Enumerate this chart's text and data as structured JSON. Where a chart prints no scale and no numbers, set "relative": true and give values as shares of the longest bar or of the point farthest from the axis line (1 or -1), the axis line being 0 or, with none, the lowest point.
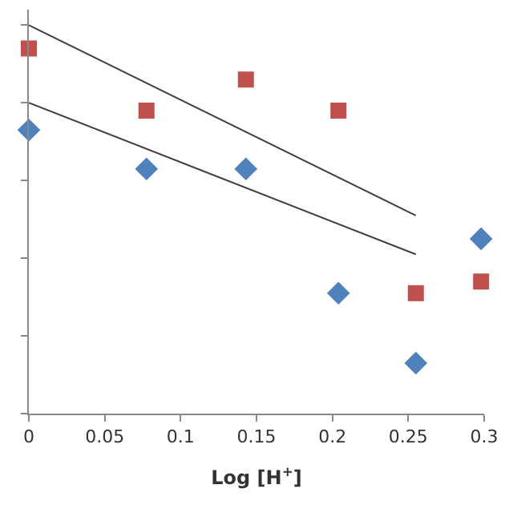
{
  "chart_data": {
    "type": "scatter",
    "xlabel": "Log [H$^{+}$]",
    "relative": true,
    "xlim": [
      0,
      0.3
    ],
    "xticks": [
      0,
      0.05,
      0.1,
      0.15,
      0.2,
      0.25,
      0.3
    ],
    "tick_labels": "x",
    "series": [
      {
        "marker": "square",
        "color": "#c0504d",
        "x": [
          0,
          0.0775,
          0.143,
          0.204,
          0.255,
          0.298
        ],
        "values": [
          0.94,
          0.78,
          0.86,
          0.78,
          0.31,
          0.34
        ]
      },
      {
        "marker": "diamond",
        "color": "#4f81bd",
        "x": [
          0,
          0.0775,
          0.143,
          0.204,
          0.255,
          0.298
        ],
        "values": [
          0.73,
          0.63,
          0.63,
          0.31,
          0.13,
          0.45
        ]
      },
      {
        "type": "line",
        "marker": "none",
        "color": "#404040",
        "x": [
          0,
          0.255
        ],
        "values": [
          1.0,
          0.51
        ]
      },
      {
        "type": "line",
        "marker": "none",
        "color": "#404040",
        "x": [
          0,
          0.255
        ],
        "values": [
          0.8,
          0.41
        ]
      }
    ]
  }
}
